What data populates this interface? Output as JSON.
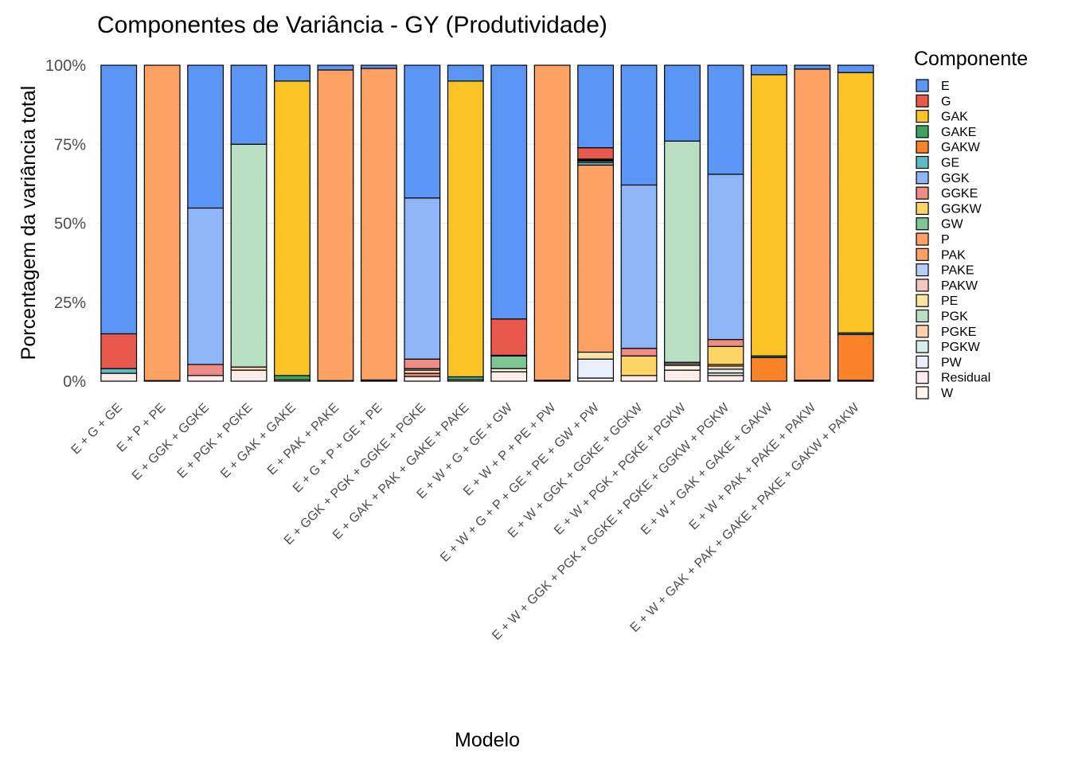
{
  "chart_data": {
    "type": "bar",
    "stacked": "percent",
    "title": "Componentes de Variância - GY (Produtividade)",
    "xlabel": "Modelo",
    "ylabel": "Porcentagem da variância total",
    "ylim": [
      0,
      100
    ],
    "y_ticks": [
      "0%",
      "25%",
      "50%",
      "75%",
      "100%"
    ],
    "legend_title": "Componente",
    "legend_position": "right",
    "components": [
      "E",
      "G",
      "GAK",
      "GAKE",
      "GAKW",
      "GE",
      "GGK",
      "GGKE",
      "GGKW",
      "GW",
      "P",
      "PAK",
      "PAKE",
      "PAKW",
      "PE",
      "PGK",
      "PGKE",
      "PGKW",
      "PW",
      "Residual",
      "W"
    ],
    "colors": {
      "E": "#5B95F5",
      "G": "#E8584C",
      "GAK": "#FBC325",
      "GAKE": "#3EA35A",
      "GAKW": "#FA8228",
      "GE": "#5BBDC4",
      "GGK": "#8EB5F6",
      "GGKE": "#EE8C85",
      "GGKW": "#FCD565",
      "GW": "#7FC494",
      "P": "#FDA263",
      "PAK": "#FDA263",
      "PAKE": "#B5CEF8",
      "PAKW": "#F7C6C2",
      "PE": "#FDE59E",
      "PGK": "#BAE0C4",
      "PGKE": "#FED0AE",
      "PGKW": "#D6EDED",
      "PW": "#E9F0FC",
      "Residual": "#FDECEC",
      "W": "#FEF7E8"
    },
    "categories": [
      "E + G + GE",
      "E + P + PE",
      "E + GGK + GGKE",
      "E + PGK + PGKE",
      "E + GAK + GAKE",
      "E + PAK + PAKE",
      "E + G + P + GE + PE",
      "E + GGK + PGK + GGKE + PGKE",
      "E + GAK + PAK + GAKE + PAKE",
      "E + W + G + GE + GW",
      "E + W + P + PE + PW",
      "E + W + G + P + GE + PE + GW + PW",
      "E + W + GGK + GGKE + GGKW",
      "E + W + PGK + PGKE + PGKW",
      "E + W + GGK + PGK + GGKE + PGKE + GGKW + PGKW",
      "E + W + GAK + GAKE + GAKW",
      "E + W + PAK + PAKE + PAKW",
      "E + W + GAK + PAK + GAKE + PAKE + GAKW + PAKW"
    ],
    "bars": [
      [
        [
          "Residual",
          2.5
        ],
        [
          "GE",
          1.5
        ],
        [
          "G",
          11
        ],
        [
          "E",
          85
        ]
      ],
      [
        [
          "Residual",
          0.1
        ],
        [
          "PE",
          0.1
        ],
        [
          "P",
          99.8
        ]
      ],
      [
        [
          "Residual",
          1.8
        ],
        [
          "GGKE",
          3.5
        ],
        [
          "GGK",
          49.5
        ],
        [
          "E",
          45.2
        ]
      ],
      [
        [
          "Residual",
          3.5
        ],
        [
          "PGKE",
          1
        ],
        [
          "PGK",
          70.5
        ],
        [
          "E",
          25
        ]
      ],
      [
        [
          "Residual",
          0.4
        ],
        [
          "GAKE",
          1.4
        ],
        [
          "GAK",
          93.2
        ],
        [
          "E",
          5
        ]
      ],
      [
        [
          "Residual",
          0.1
        ],
        [
          "PAKE",
          0.1
        ],
        [
          "PAK",
          98.3
        ],
        [
          "E",
          1.5
        ]
      ],
      [
        [
          "Residual",
          0.1
        ],
        [
          "GE",
          0.1
        ],
        [
          "PE",
          0.1
        ],
        [
          "G",
          0.1
        ],
        [
          "P",
          98.6
        ],
        [
          "E",
          1
        ]
      ],
      [
        [
          "Residual",
          1.5
        ],
        [
          "GGKE",
          1
        ],
        [
          "PGKE",
          1
        ],
        [
          "PGK",
          0.5
        ],
        [
          "GGKE",
          3
        ],
        [
          "GGK",
          51
        ],
        [
          "E",
          42
        ]
      ],
      [
        [
          "Residual",
          0.4
        ],
        [
          "GAKE",
          1
        ],
        [
          "GAK",
          93.6
        ],
        [
          "E",
          5
        ]
      ],
      [
        [
          "Residual",
          3
        ],
        [
          "W",
          1
        ],
        [
          "GW",
          4
        ],
        [
          "GE",
          0.2
        ],
        [
          "G",
          11.5
        ],
        [
          "E",
          80.3
        ]
      ],
      [
        [
          "Residual",
          0.1
        ],
        [
          "PW",
          0.1
        ],
        [
          "PE",
          0.1
        ],
        [
          "P",
          99.7
        ]
      ],
      [
        [
          "Residual",
          1
        ],
        [
          "PW",
          6
        ],
        [
          "PE",
          2.2
        ],
        [
          "P",
          59.2
        ],
        [
          "GE",
          0.8
        ],
        [
          "GW",
          0.5
        ],
        [
          "G",
          0.3
        ],
        [
          "GW",
          0.3
        ],
        [
          "G",
          3.6
        ],
        [
          "E",
          26.1
        ]
      ],
      [
        [
          "Residual",
          1.8
        ],
        [
          "GGKW",
          6.2
        ],
        [
          "GGKE",
          2.4
        ],
        [
          "GGK",
          51.7
        ],
        [
          "E",
          37.9
        ]
      ],
      [
        [
          "Residual",
          3.5
        ],
        [
          "W",
          1.5
        ],
        [
          "PGKW",
          0.5
        ],
        [
          "PGKE",
          0.5
        ],
        [
          "PGK",
          70
        ],
        [
          "E",
          24
        ]
      ],
      [
        [
          "Residual",
          1.8
        ],
        [
          "W",
          0.8
        ],
        [
          "PGKW",
          1.2
        ],
        [
          "PGKE",
          1
        ],
        [
          "PE",
          0.5
        ],
        [
          "GGKW",
          5.7
        ],
        [
          "GGKE",
          2.2
        ],
        [
          "GGK",
          52.3
        ],
        [
          "E",
          34.5
        ]
      ],
      [
        [
          "GAKW",
          7.5
        ],
        [
          "GAKE",
          0.5
        ],
        [
          "GAK",
          89
        ],
        [
          "E",
          3
        ]
      ],
      [
        [
          "Residual",
          0.1
        ],
        [
          "PAKW",
          0.1
        ],
        [
          "PAKE",
          0.1
        ],
        [
          "PAK",
          98.5
        ],
        [
          "E",
          1.2
        ]
      ],
      [
        [
          "Residual",
          0.3
        ],
        [
          "GAKW",
          14.5
        ],
        [
          "GAKE",
          0.5
        ],
        [
          "GAK",
          82.4
        ],
        [
          "E",
          2.3
        ]
      ]
    ]
  }
}
